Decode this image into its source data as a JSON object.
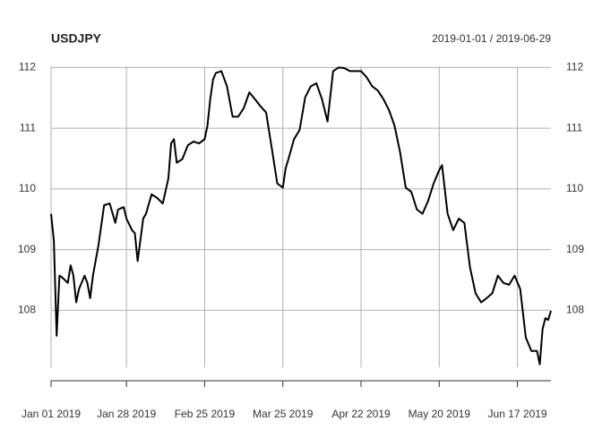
{
  "chart_data": {
    "type": "line",
    "title": "USDJPY",
    "subtitle": "2019-01-01 / 2019-06-29",
    "series": [
      {
        "name": "USDJPY",
        "color": "#000000",
        "x": [
          "2019-01-01",
          "2019-01-02",
          "2019-01-03",
          "2019-01-04",
          "2019-01-05",
          "2019-01-07",
          "2019-01-08",
          "2019-01-09",
          "2019-01-10",
          "2019-01-11",
          "2019-01-13",
          "2019-01-14",
          "2019-01-15",
          "2019-01-16",
          "2019-01-18",
          "2019-01-20",
          "2019-01-22",
          "2019-01-24",
          "2019-01-25",
          "2019-01-27",
          "2019-01-28",
          "2019-01-30",
          "2019-01-31",
          "2019-02-01",
          "2019-02-03",
          "2019-02-04",
          "2019-02-06",
          "2019-02-08",
          "2019-02-10",
          "2019-02-12",
          "2019-02-13",
          "2019-02-14",
          "2019-02-15",
          "2019-02-17",
          "2019-02-19",
          "2019-02-21",
          "2019-02-23",
          "2019-02-25",
          "2019-02-26",
          "2019-02-27",
          "2019-02-28",
          "2019-03-01",
          "2019-03-03",
          "2019-03-05",
          "2019-03-07",
          "2019-03-09",
          "2019-03-11",
          "2019-03-13",
          "2019-03-15",
          "2019-03-17",
          "2019-03-19",
          "2019-03-21",
          "2019-03-23",
          "2019-03-25",
          "2019-03-26",
          "2019-03-27",
          "2019-03-29",
          "2019-03-31",
          "2019-04-02",
          "2019-04-04",
          "2019-04-06",
          "2019-04-08",
          "2019-04-10",
          "2019-04-12",
          "2019-04-14",
          "2019-04-16",
          "2019-04-18",
          "2019-04-20",
          "2019-04-22",
          "2019-04-24",
          "2019-04-26",
          "2019-04-28",
          "2019-04-30",
          "2019-05-02",
          "2019-05-04",
          "2019-05-06",
          "2019-05-08",
          "2019-05-10",
          "2019-05-12",
          "2019-05-14",
          "2019-05-16",
          "2019-05-18",
          "2019-05-20",
          "2019-05-21",
          "2019-05-23",
          "2019-05-25",
          "2019-05-27",
          "2019-05-29",
          "2019-05-31",
          "2019-06-02",
          "2019-06-04",
          "2019-06-06",
          "2019-06-08",
          "2019-06-10",
          "2019-06-12",
          "2019-06-14",
          "2019-06-16",
          "2019-06-18",
          "2019-06-20",
          "2019-06-22",
          "2019-06-24",
          "2019-06-25",
          "2019-06-26",
          "2019-06-27",
          "2019-06-28",
          "2019-06-29"
        ],
        "values": [
          109.59,
          109.15,
          107.58,
          108.57,
          108.54,
          108.45,
          108.74,
          108.57,
          108.13,
          108.35,
          108.57,
          108.45,
          108.2,
          108.57,
          109.08,
          109.73,
          109.76,
          109.44,
          109.66,
          109.7,
          109.51,
          109.32,
          109.27,
          108.81,
          109.51,
          109.59,
          109.91,
          109.85,
          109.76,
          110.17,
          110.75,
          110.82,
          110.43,
          110.49,
          110.72,
          110.78,
          110.75,
          110.82,
          111.04,
          111.48,
          111.8,
          111.91,
          111.94,
          111.69,
          111.19,
          111.19,
          111.33,
          111.59,
          111.48,
          111.36,
          111.26,
          110.68,
          110.09,
          110.02,
          110.34,
          110.49,
          110.82,
          110.97,
          111.51,
          111.69,
          111.74,
          111.48,
          111.11,
          111.94,
          112.0,
          111.99,
          111.94,
          111.94,
          111.94,
          111.84,
          111.69,
          111.62,
          111.48,
          111.3,
          111.04,
          110.6,
          110.02,
          109.95,
          109.66,
          109.59,
          109.8,
          110.09,
          110.31,
          110.39,
          109.59,
          109.32,
          109.51,
          109.44,
          108.71,
          108.28,
          108.13,
          108.2,
          108.28,
          108.57,
          108.45,
          108.42,
          108.57,
          108.35,
          107.55,
          107.33,
          107.33,
          107.11,
          107.69,
          107.87,
          107.84,
          107.99
        ]
      }
    ],
    "xlim": [
      "2019-01-01",
      "2019-06-29"
    ],
    "xticks": [
      {
        "value": "2019-01-01",
        "label": "Jan 01 2019"
      },
      {
        "value": "2019-01-28",
        "label": "Jan 28 2019"
      },
      {
        "value": "2019-02-25",
        "label": "Feb 25 2019"
      },
      {
        "value": "2019-03-25",
        "label": "Mar 25 2019"
      },
      {
        "value": "2019-04-22",
        "label": "Apr 22 2019"
      },
      {
        "value": "2019-05-20",
        "label": "May 20 2019"
      },
      {
        "value": "2019-06-17",
        "label": "Jun 17 2019"
      }
    ],
    "ylim": [
      107.06,
      112.02
    ],
    "yticks": [
      108,
      109,
      110,
      111,
      112
    ],
    "grid": true
  }
}
